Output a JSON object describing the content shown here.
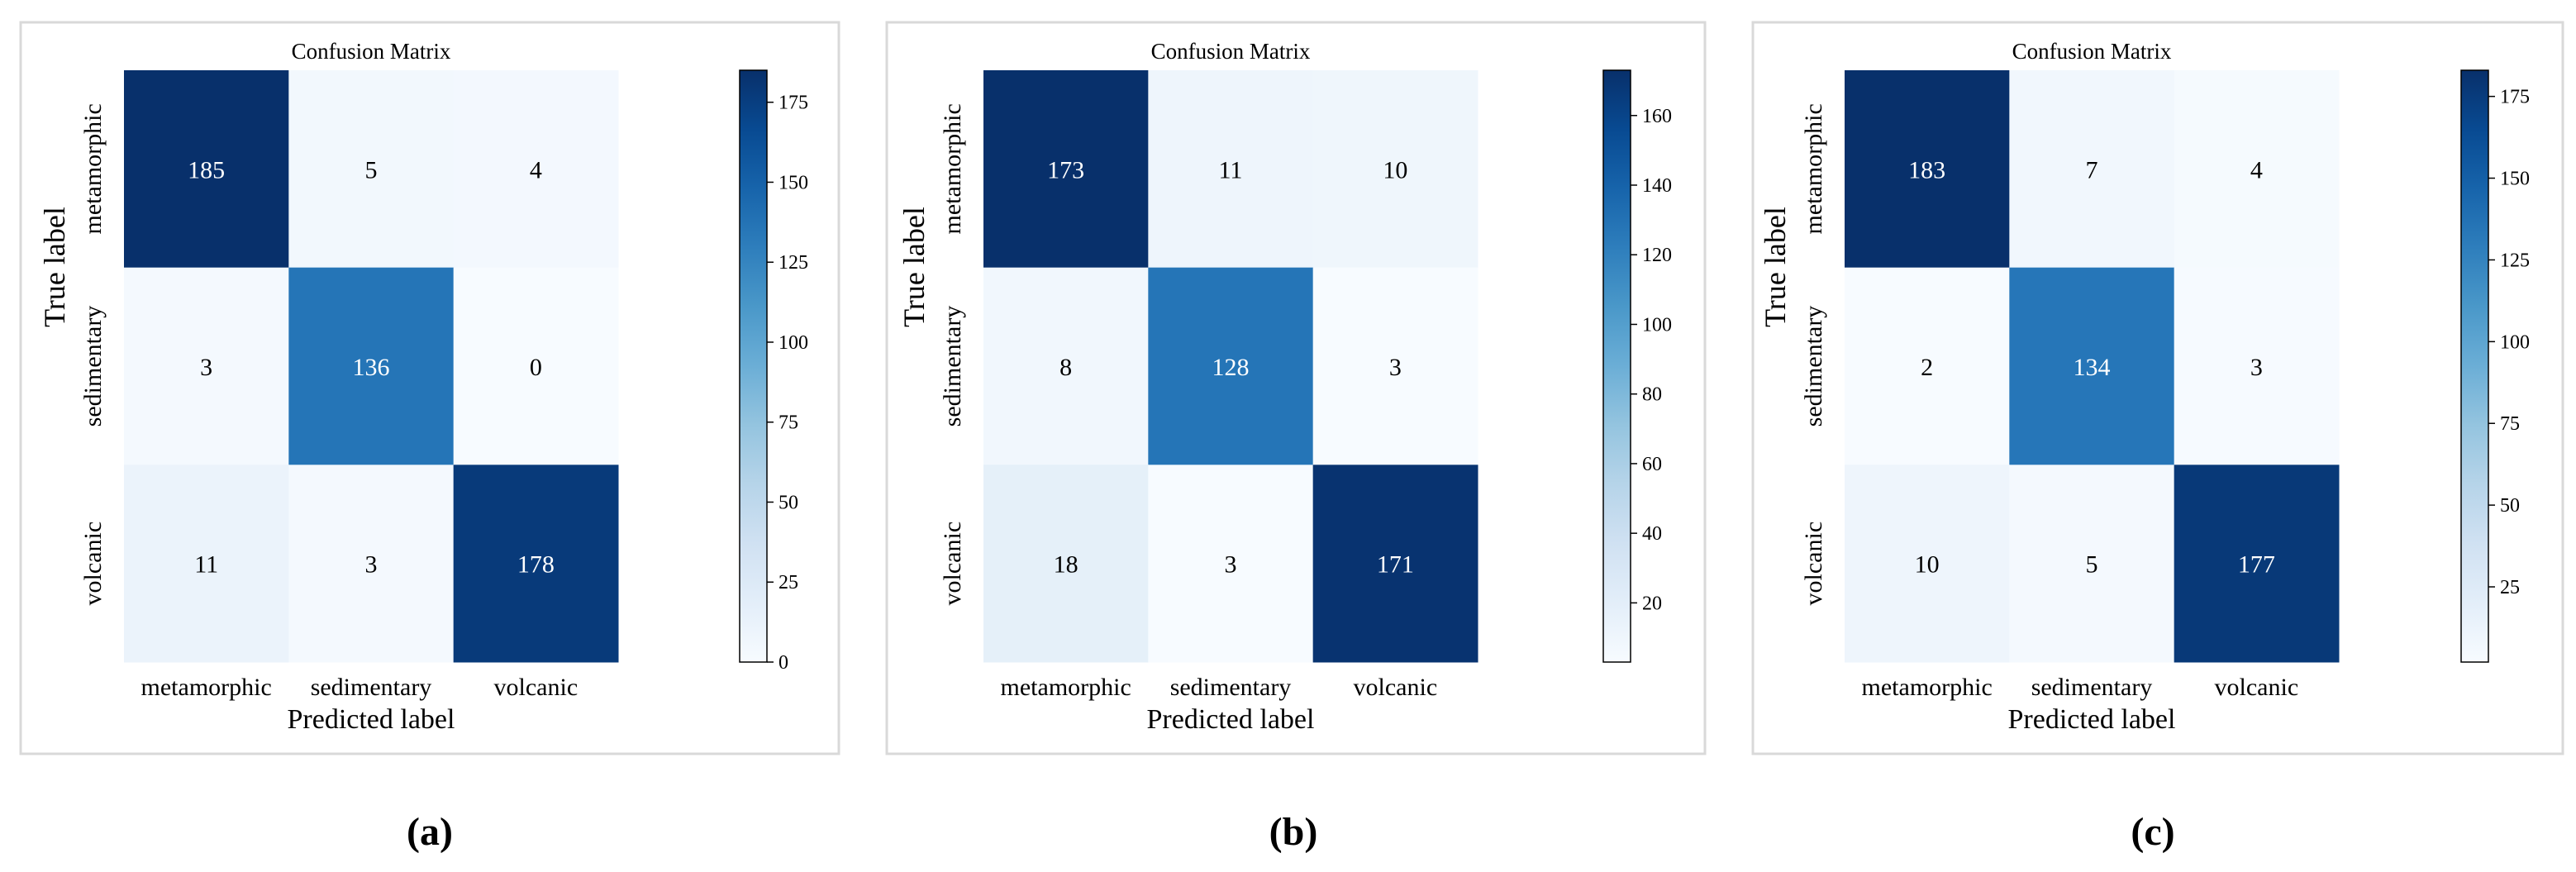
{
  "figure": {
    "panel_labels": [
      "(a)",
      "(b)",
      "(c)"
    ]
  },
  "chart_data": [
    {
      "type": "heatmap",
      "title": "Confusion Matrix",
      "xlabel": "Predicted label",
      "ylabel": "True label",
      "x_categories": [
        "metamorphic",
        "sedimentary",
        "volcanic"
      ],
      "y_categories": [
        "metamorphic",
        "sedimentary",
        "volcanic"
      ],
      "matrix": [
        [
          185,
          5,
          4
        ],
        [
          3,
          136,
          0
        ],
        [
          11,
          3,
          178
        ]
      ],
      "colorbar": {
        "range": [
          0,
          185
        ],
        "ticks": [
          0,
          25,
          50,
          75,
          100,
          125,
          150,
          175
        ],
        "colormap": "Blues"
      }
    },
    {
      "type": "heatmap",
      "title": "Confusion Matrix",
      "xlabel": "Predicted label",
      "ylabel": "True label",
      "x_categories": [
        "metamorphic",
        "sedimentary",
        "volcanic"
      ],
      "y_categories": [
        "metamorphic",
        "sedimentary",
        "volcanic"
      ],
      "matrix": [
        [
          173,
          11,
          10
        ],
        [
          8,
          128,
          3
        ],
        [
          18,
          3,
          171
        ]
      ],
      "colorbar": {
        "range": [
          3,
          173
        ],
        "ticks": [
          20,
          40,
          60,
          80,
          100,
          120,
          140,
          160
        ],
        "colormap": "Blues"
      }
    },
    {
      "type": "heatmap",
      "title": "Confusion Matrix",
      "xlabel": "Predicted label",
      "ylabel": "True label",
      "x_categories": [
        "metamorphic",
        "sedimentary",
        "volcanic"
      ],
      "y_categories": [
        "metamorphic",
        "sedimentary",
        "volcanic"
      ],
      "matrix": [
        [
          183,
          7,
          4
        ],
        [
          2,
          134,
          3
        ],
        [
          10,
          5,
          177
        ]
      ],
      "colorbar": {
        "range": [
          2,
          183
        ],
        "ticks": [
          25,
          50,
          75,
          100,
          125,
          150,
          175
        ],
        "colormap": "Blues"
      }
    }
  ],
  "colors": {
    "blues": [
      "#f7fbff",
      "#deebf7",
      "#c6dbef",
      "#9ecae1",
      "#6baed6",
      "#4292c6",
      "#2171b5",
      "#08519c",
      "#08306b"
    ],
    "panel_border": "#d9d9d9",
    "text_dark": "#222222"
  }
}
